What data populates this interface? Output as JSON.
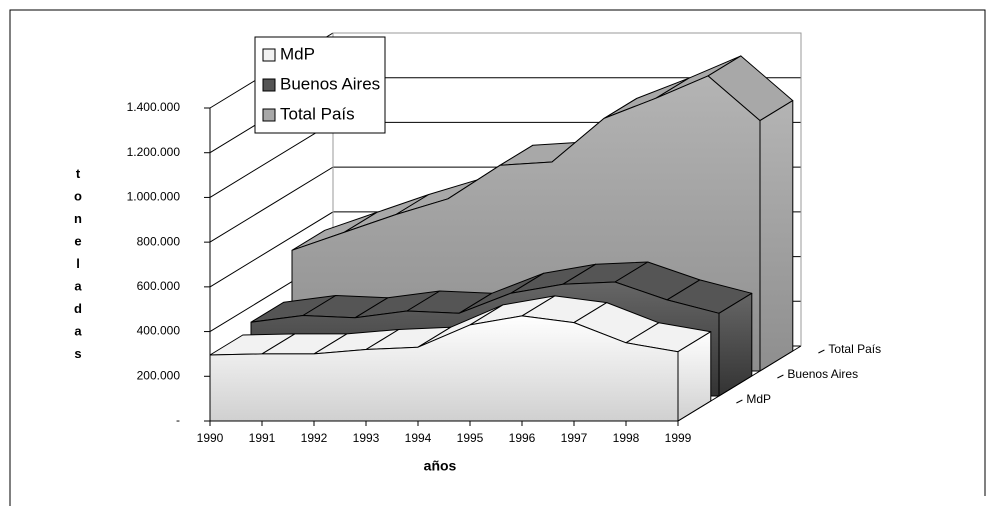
{
  "chart_data": {
    "type": "area",
    "y_label": "toneladas",
    "x_label": "años",
    "categories": [
      "1990",
      "1991",
      "1992",
      "1993",
      "1994",
      "1995",
      "1996",
      "1997",
      "1998",
      "1999"
    ],
    "series": [
      {
        "name": "MdP",
        "color": "#f2f2f2",
        "values": [
          295000,
          300000,
          300000,
          320000,
          330000,
          430000,
          470000,
          440000,
          350000,
          310000
        ]
      },
      {
        "name": "Buenos Aires",
        "color": "#555555",
        "values": [
          330000,
          360000,
          350000,
          380000,
          370000,
          460000,
          500000,
          510000,
          430000,
          370000
        ]
      },
      {
        "name": "Total País",
        "color": "#a8a8a8",
        "values": [
          540000,
          620000,
          700000,
          770000,
          920000,
          935000,
          1130000,
          1220000,
          1320000,
          1120000
        ]
      }
    ],
    "ylim": [
      0,
      1400000
    ],
    "yticks": [
      {
        "value": 0,
        "label": "-"
      },
      {
        "value": 200000,
        "label": "200.000"
      },
      {
        "value": 400000,
        "label": "400.000"
      },
      {
        "value": 600000,
        "label": "600.000"
      },
      {
        "value": 800000,
        "label": "800.000"
      },
      {
        "value": 1000000,
        "label": "1.000.000"
      },
      {
        "value": 1200000,
        "label": "1.200.000"
      },
      {
        "value": 1400000,
        "label": "1.400.000"
      }
    ],
    "grid": true,
    "legend": "top-left"
  }
}
